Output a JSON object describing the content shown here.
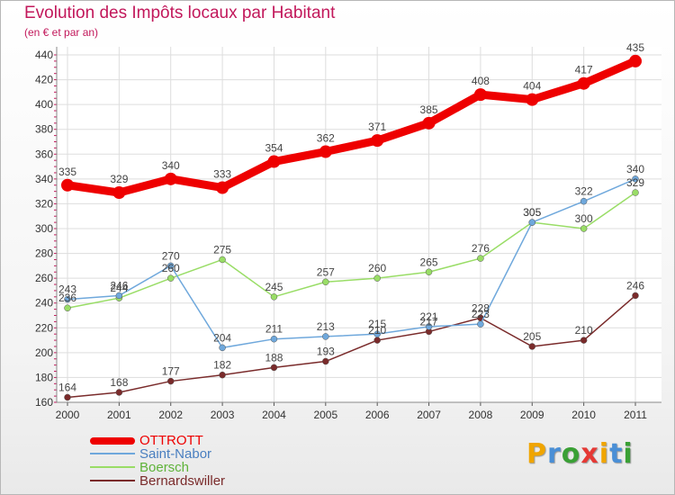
{
  "title": "Evolution des Impôts locaux par Habitant",
  "subtitle": "(en € et par an)",
  "logo": {
    "text": "Proxiti",
    "colors": [
      "#f0a500",
      "#4a8fd6",
      "#3aa035",
      "#e53935",
      "#f0a500",
      "#4a8fd6",
      "#3aa035"
    ]
  },
  "chart_data": {
    "type": "line",
    "x": [
      "2000",
      "2001",
      "2002",
      "2003",
      "2004",
      "2005",
      "2006",
      "2007",
      "2008",
      "2009",
      "2010",
      "2011"
    ],
    "ylim": [
      160,
      440
    ],
    "yticks": [
      "160",
      "180",
      "200",
      "220",
      "240",
      "260",
      "280",
      "300",
      "320",
      "340",
      "360",
      "380",
      "400",
      "420",
      "440"
    ],
    "grid": true,
    "legend_position": "bottom-left",
    "series": [
      {
        "name": "OTTROTT",
        "color": "#ee0000",
        "values": [
          335,
          329,
          340,
          333,
          354,
          362,
          371,
          385,
          408,
          404,
          417,
          435
        ],
        "labels": [
          "335",
          "329",
          "340",
          "333",
          "354",
          "362",
          "371",
          "385",
          "408",
          "404",
          "417",
          "435"
        ]
      },
      {
        "name": "Saint-Nabor",
        "color": "#6fa8dc",
        "values": [
          243,
          246,
          270,
          204,
          211,
          213,
          215,
          221,
          223,
          305,
          322,
          340
        ],
        "labels": [
          "243",
          "246",
          "270",
          "204",
          "211",
          "213",
          "215",
          "221",
          "223",
          "305",
          "322",
          "340"
        ]
      },
      {
        "name": "Boersch",
        "color": "#99dd66",
        "values": [
          236,
          244,
          260,
          275,
          245,
          257,
          260,
          265,
          276,
          305,
          300,
          329
        ],
        "labels": [
          "236",
          "244",
          "260",
          "275",
          "245",
          "257",
          "260",
          "265",
          "276",
          "305",
          "300",
          "329"
        ]
      },
      {
        "name": "Bernardswiller",
        "color": "#7a2b2b",
        "values": [
          164,
          168,
          177,
          182,
          188,
          193,
          210,
          217,
          228,
          205,
          210,
          246
        ],
        "labels": [
          "164",
          "168",
          "177",
          "182",
          "188",
          "193",
          "210",
          "217",
          "228",
          "205",
          "210",
          "246"
        ]
      }
    ]
  }
}
